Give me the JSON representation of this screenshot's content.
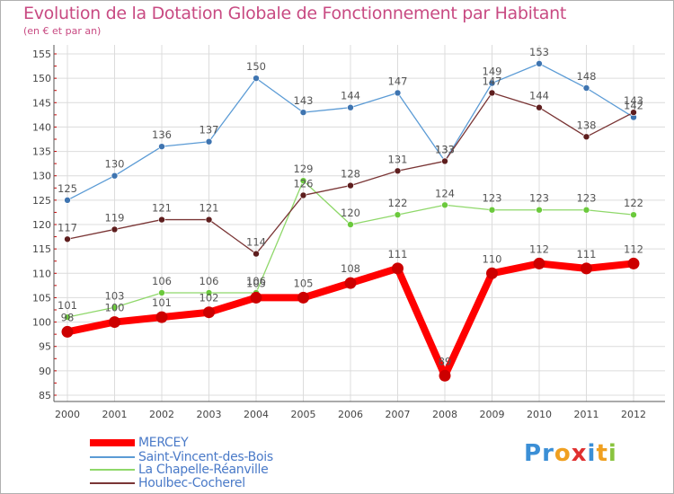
{
  "colors": {
    "title": "#c84a82",
    "axis": "#555555",
    "grid": "#dcdcdc",
    "axis_tick_red": "#cc0000",
    "legend_text": "#4a7ac8"
  },
  "chart_data": {
    "type": "line",
    "title": "Evolution de la Dotation Globale de Fonctionnement par Habitant",
    "subtitle": "(en € et par an)",
    "xlabel": "",
    "ylabel": "",
    "ylim": [
      85,
      155
    ],
    "yticks": [
      "85",
      "90",
      "95",
      "100",
      "105",
      "110",
      "115",
      "120",
      "125",
      "130",
      "135",
      "140",
      "145",
      "150",
      "155"
    ],
    "categories": [
      "2000",
      "2001",
      "2002",
      "2003",
      "2004",
      "2005",
      "2006",
      "2007",
      "2008",
      "2009",
      "2010",
      "2011",
      "2012"
    ],
    "grid": true,
    "series": [
      {
        "name": "Saint-Vincent-des-Bois",
        "color": "#5b9bd5",
        "dot": "#3e74b0",
        "values": [
          125,
          130,
          136,
          137,
          150,
          143,
          144,
          147,
          133,
          149,
          153,
          148,
          142
        ],
        "labels": [
          "125",
          "130",
          "136",
          "137",
          "150",
          "143",
          "144",
          "147",
          "133",
          "149",
          "153",
          "148",
          "142"
        ]
      },
      {
        "name": "La Chapelle-Réanville",
        "color": "#8fd86a",
        "dot": "#6bc93c",
        "values": [
          101,
          103,
          106,
          106,
          106,
          129,
          120,
          122,
          124,
          123,
          123,
          123,
          122
        ],
        "labels": [
          "101",
          "103",
          "106",
          "106",
          "106",
          "129",
          "120",
          "122",
          "124",
          "123",
          "123",
          "123",
          "122"
        ]
      },
      {
        "name": "Houlbec-Cocherel",
        "color": "#7a3535",
        "dot": "#5e1e1e",
        "values": [
          117,
          119,
          121,
          121,
          114,
          126,
          128,
          131,
          133,
          147,
          144,
          138,
          143
        ],
        "labels": [
          "117",
          "119",
          "121",
          "121",
          "114",
          "126",
          "128",
          "131",
          "133",
          "147",
          "144",
          "138",
          "143"
        ]
      },
      {
        "name": "MERCEY",
        "color": "#ff0000",
        "dot": "#cc0000",
        "values": [
          98,
          100,
          101,
          102,
          105,
          105,
          108,
          111,
          89,
          110,
          112,
          111,
          112
        ],
        "labels": [
          "98",
          "100",
          "101",
          "102",
          "105",
          "105",
          "108",
          "111",
          "89",
          "110",
          "112",
          "111",
          "112"
        ]
      }
    ],
    "legend": {
      "position": "bottom-left",
      "entries": [
        "MERCEY",
        "Saint-Vincent-des-Bois",
        "La Chapelle-Réanville",
        "Houlbec-Cocherel"
      ]
    }
  },
  "logo": {
    "letters": [
      "P",
      "r",
      "o",
      "x",
      "i",
      "t",
      "i"
    ],
    "colors": [
      "#3b8fd6",
      "#3b8fd6",
      "#f0a020",
      "#e03030",
      "#3b8fd6",
      "#f0a020",
      "#8ac43f"
    ]
  }
}
